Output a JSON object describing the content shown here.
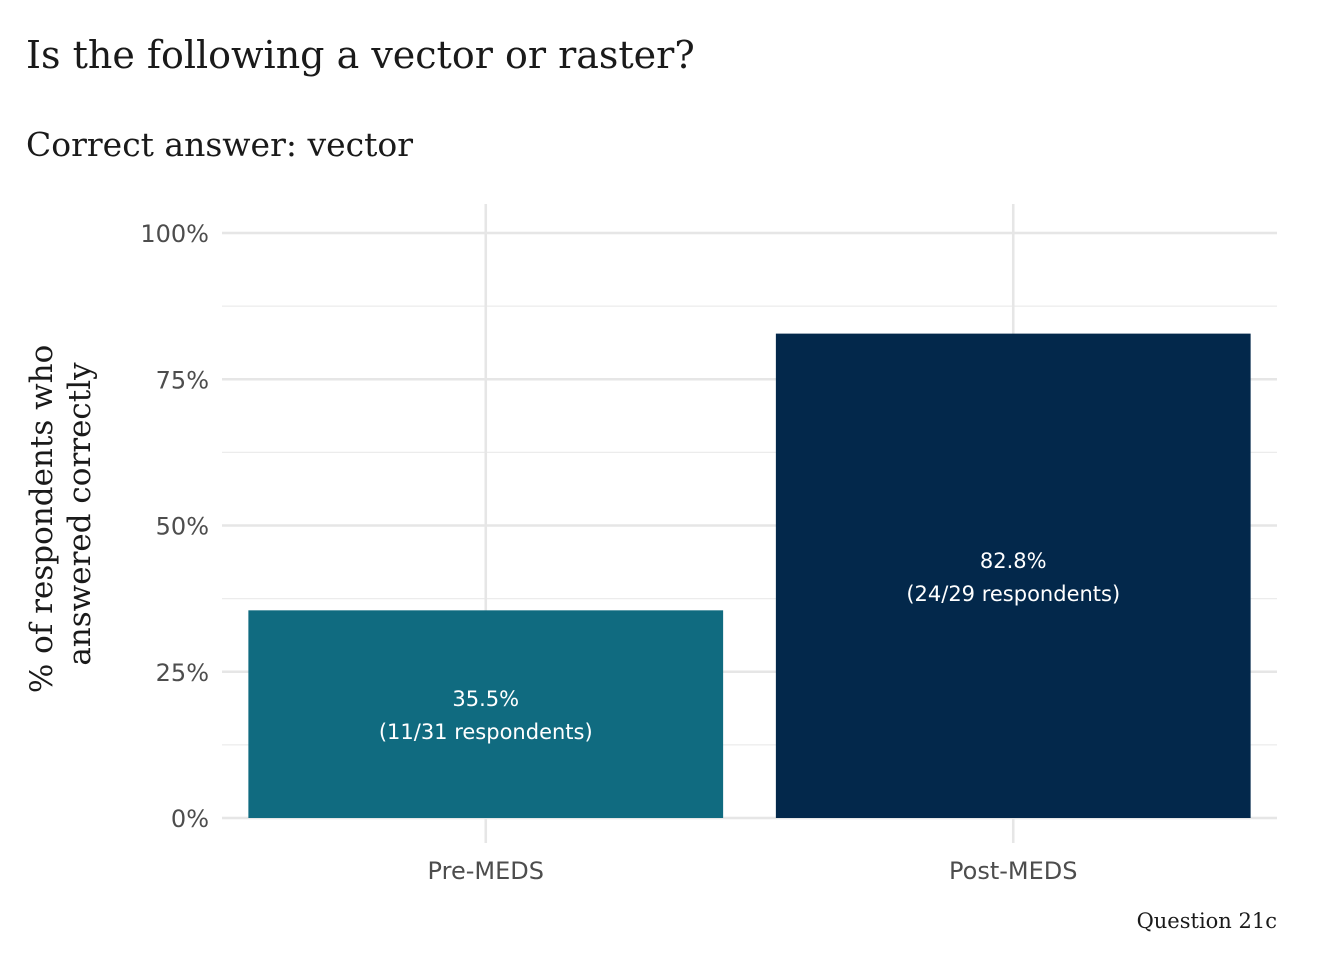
{
  "chart_data": {
    "type": "bar",
    "title": "Is the following a vector or raster?",
    "subtitle": "Correct answer: vector",
    "xlabel": "",
    "ylabel": "% of respondents who answered correctly",
    "ylabel_lines": [
      "% of respondents who",
      "answered correctly"
    ],
    "caption": "Question 21c",
    "categories": [
      "Pre-MEDS",
      "Post-MEDS"
    ],
    "values": [
      35.5,
      82.8
    ],
    "colors": [
      "#106B80",
      "#03284B"
    ],
    "data_labels": [
      [
        "35.5%",
        "(11/31 respondents)"
      ],
      [
        "82.8%",
        "(24/29 respondents)"
      ]
    ],
    "y_ticks": [
      0,
      25,
      50,
      75,
      100
    ],
    "y_tick_labels": [
      "0%",
      "25%",
      "50%",
      "75%",
      "100%"
    ],
    "ylim": [
      0,
      100
    ],
    "grid": true,
    "legend": "none"
  }
}
